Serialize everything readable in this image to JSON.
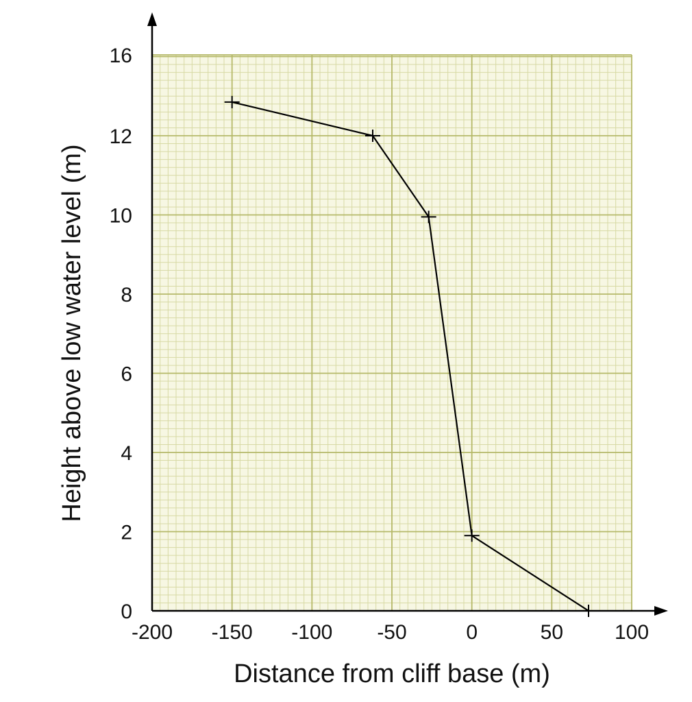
{
  "chart_data": {
    "type": "line",
    "title": "",
    "xlabel": "Distance from cliff base (m)",
    "ylabel": "Height above low water level (m)",
    "xlim": [
      -200,
      100
    ],
    "ylim": [
      0,
      14
    ],
    "x_ticks": [
      -200,
      -150,
      -100,
      -50,
      0,
      50,
      100
    ],
    "y_ticks": [
      0,
      2,
      4,
      6,
      8,
      10,
      12,
      16
    ],
    "x_tick_labels": [
      "-200",
      "-150",
      "-100",
      "-50",
      "0",
      "50",
      "100"
    ],
    "y_tick_labels": [
      "0",
      "2",
      "4",
      "6",
      "8",
      "10",
      "12",
      "16"
    ],
    "grid": true,
    "series": [
      {
        "x": [
          -150,
          -62,
          -27,
          0,
          73
        ],
        "y": [
          12.85,
          12.0,
          9.95,
          1.9,
          0.0
        ]
      }
    ],
    "colors": {
      "grid_major": "#b5b868",
      "grid_minor": "#d7d9a4",
      "grid_background": "#f7f7e3",
      "line": "#000000",
      "axis": "#000000"
    }
  }
}
